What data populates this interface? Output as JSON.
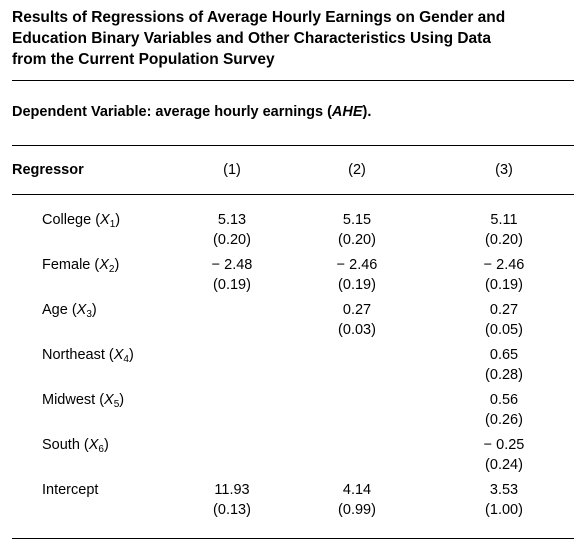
{
  "title": {
    "line1": "Results of Regressions of Average Hourly Earnings on Gender and",
    "line2": "Education Binary Variables and Other Characteristics Using Data",
    "line3": "from the Current Population Survey"
  },
  "dependent": {
    "prefix": "Dependent Variable: average hourly earnings (",
    "var": "AHE",
    "suffix": ")."
  },
  "header": {
    "regressor": "Regressor",
    "cols": [
      "(1)",
      "(2)",
      "(3)"
    ]
  },
  "rows": [
    {
      "name": "College (",
      "sym": "X",
      "sub": "1",
      "close": ")",
      "cells": [
        {
          "coef": "5.13",
          "se": "(0.20)"
        },
        {
          "coef": "5.15",
          "se": "(0.20)"
        },
        {
          "coef": "5.11",
          "se": "(0.20)"
        }
      ]
    },
    {
      "name": "Female (",
      "sym": "X",
      "sub": "2",
      "close": ")",
      "cells": [
        {
          "coef": "− 2.48",
          "se": "(0.19)"
        },
        {
          "coef": "− 2.46",
          "se": "(0.19)"
        },
        {
          "coef": "− 2.46",
          "se": "(0.19)"
        }
      ]
    },
    {
      "name": "Age (",
      "sym": "X",
      "sub": "3",
      "close": ")",
      "cells": [
        {
          "coef": "",
          "se": ""
        },
        {
          "coef": "0.27",
          "se": "(0.03)"
        },
        {
          "coef": "0.27",
          "se": "(0.05)"
        }
      ]
    },
    {
      "name": "Northeast (",
      "sym": "X",
      "sub": "4",
      "close": ")",
      "cells": [
        {
          "coef": "",
          "se": ""
        },
        {
          "coef": "",
          "se": ""
        },
        {
          "coef": "0.65",
          "se": "(0.28)"
        }
      ]
    },
    {
      "name": "Midwest (",
      "sym": "X",
      "sub": "5",
      "close": ")",
      "cells": [
        {
          "coef": "",
          "se": ""
        },
        {
          "coef": "",
          "se": ""
        },
        {
          "coef": "0.56",
          "se": "(0.26)"
        }
      ]
    },
    {
      "name": "South (",
      "sym": "X",
      "sub": "6",
      "close": ")",
      "cells": [
        {
          "coef": "",
          "se": ""
        },
        {
          "coef": "",
          "se": ""
        },
        {
          "coef": "− 0.25",
          "se": "(0.24)"
        }
      ]
    },
    {
      "name": "Intercept",
      "sym": "",
      "sub": "",
      "close": "",
      "cells": [
        {
          "coef": "11.93",
          "se": "(0.13)"
        },
        {
          "coef": "4.14",
          "se": "(0.99)"
        },
        {
          "coef": "3.53",
          "se": "(1.00)"
        }
      ]
    }
  ]
}
